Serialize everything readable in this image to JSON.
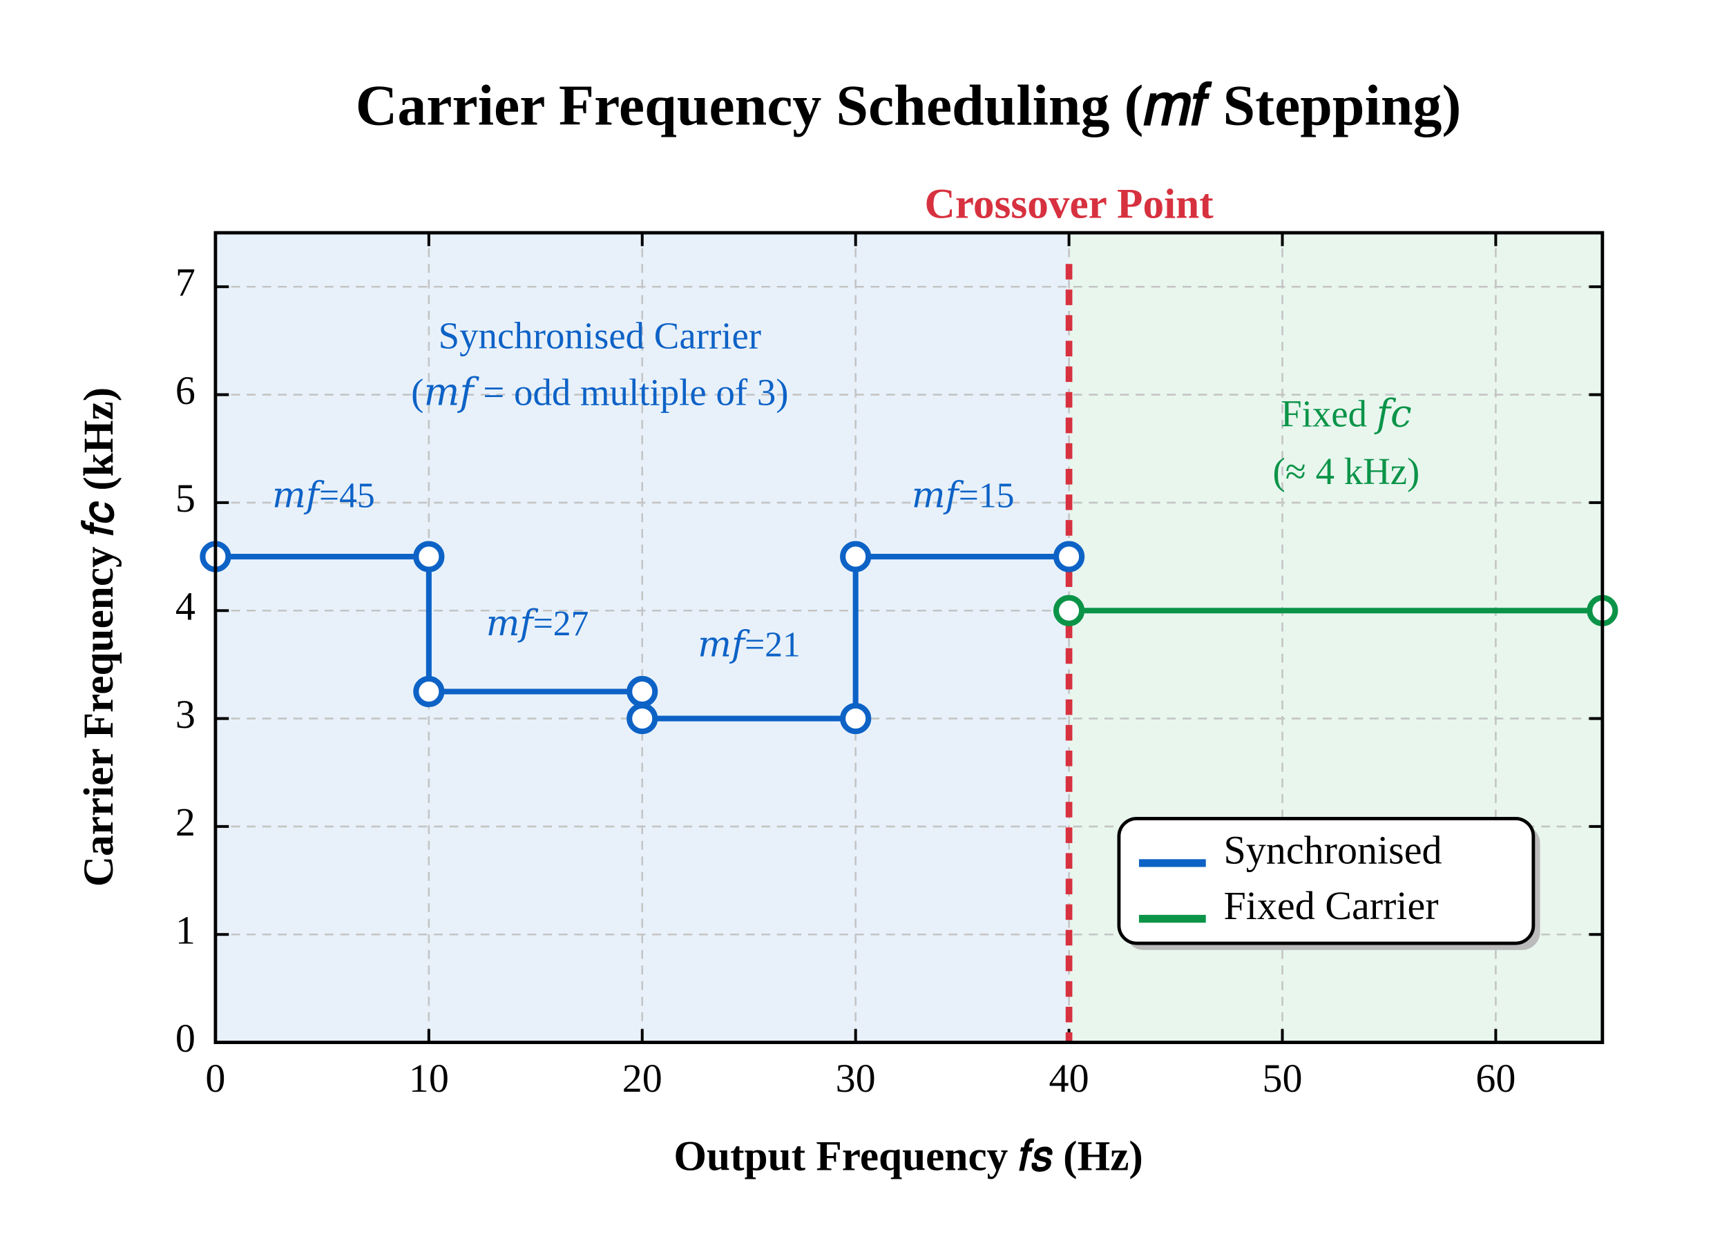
{
  "chart_data": {
    "type": "line",
    "title": "Carrier Frequency Scheduling (𝑚𝑓 Stepping)",
    "x_label": "Output Frequency 𝑓𝑠 (Hz)",
    "y_label": "Carrier Frequency 𝑓𝑐 (kHz)",
    "xlim": [
      0,
      65
    ],
    "ylim": [
      0,
      7.5
    ],
    "xticks": [
      0,
      10,
      20,
      30,
      40,
      50,
      60
    ],
    "yticks": [
      0,
      1,
      2,
      3,
      4,
      5,
      6,
      7
    ],
    "grid": true,
    "legend": "lower right",
    "crossover": {
      "x": 40,
      "label": "Crossover Point",
      "color": "#d7313f"
    },
    "regions": [
      {
        "from": 0,
        "to": 40,
        "color": "#e8f1fa"
      },
      {
        "from": 40,
        "to": 65,
        "color": "#e8f6ee"
      }
    ],
    "series": [
      {
        "name": "Synchronised",
        "color": "#0d62c6",
        "x": [
          0,
          10,
          10,
          20,
          20,
          30,
          30,
          40
        ],
        "values": [
          4.5,
          4.5,
          3.25,
          3.25,
          3.0,
          3.0,
          4.5,
          4.5
        ]
      },
      {
        "name": "Fixed Carrier",
        "color": "#0b9448",
        "x": [
          40,
          65
        ],
        "values": [
          4,
          4
        ]
      }
    ],
    "annotations": [
      {
        "text": "Synchronised Carrier",
        "color": "#0d62c6"
      },
      {
        "text": "(𝑚𝑓 = odd multiple of 3)",
        "color": "#0d62c6"
      },
      {
        "text": "𝑚𝑓=45",
        "color": "#0d62c6"
      },
      {
        "text": "𝑚𝑓=27",
        "color": "#0d62c6"
      },
      {
        "text": "𝑚𝑓=21",
        "color": "#0d62c6"
      },
      {
        "text": "𝑚𝑓=15",
        "color": "#0d62c6"
      },
      {
        "text": "Fixed 𝑓𝑐",
        "color": "#0b9448"
      },
      {
        "text": "(≈ 4 kHz)",
        "color": "#0b9448"
      }
    ]
  }
}
